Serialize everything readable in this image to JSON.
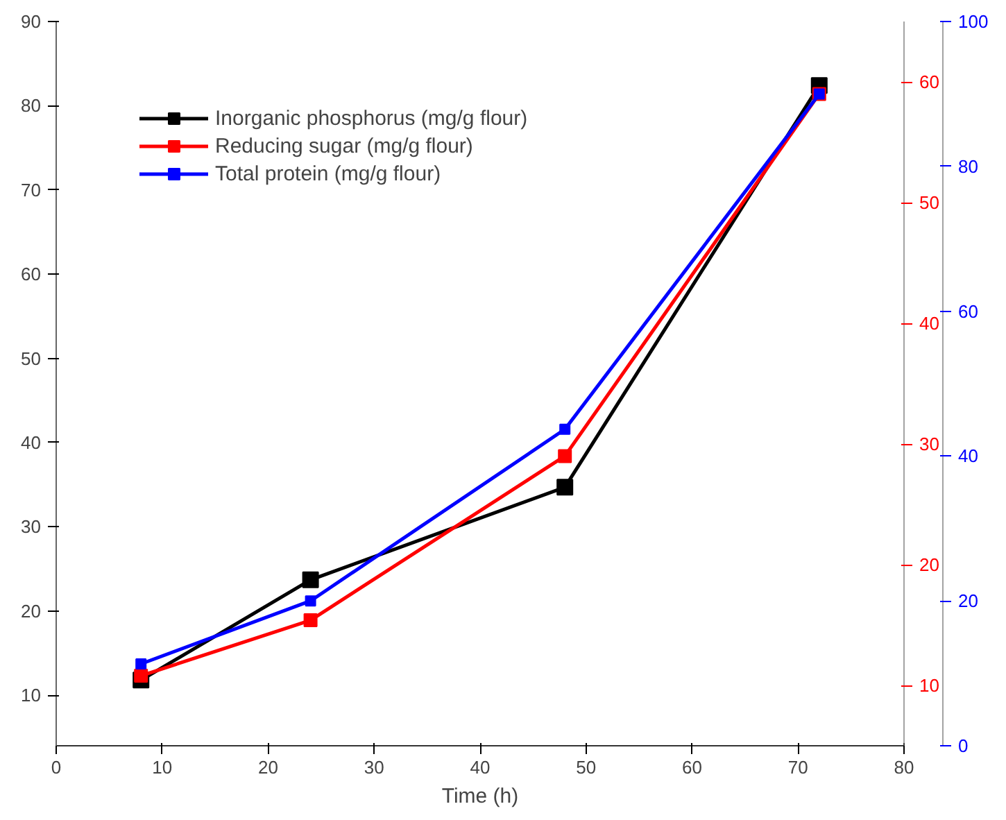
{
  "chart_data": {
    "type": "line",
    "xlabel": "Time (h)",
    "xlim": [
      0,
      80
    ],
    "xticks": [
      0,
      10,
      20,
      30,
      40,
      50,
      60,
      70,
      80
    ],
    "ylim": [
      4,
      90
    ],
    "yticks": [
      10,
      20,
      30,
      40,
      50,
      60,
      70,
      80,
      90
    ],
    "y2lim": [
      5,
      65
    ],
    "y2ticks": [
      10,
      20,
      30,
      40,
      50,
      60
    ],
    "y3lim": [
      0,
      100
    ],
    "y3ticks": [
      0,
      20,
      40,
      60,
      80,
      100
    ],
    "grid": false,
    "legend": "top left",
    "marker": "square",
    "line_style": "solid",
    "series": [
      {
        "name": "Inorganic phosphorus (mg/g flour)",
        "color": "#000000",
        "x": [
          8,
          24,
          48,
          72
        ],
        "values": [
          11.8,
          23.7,
          34.7,
          82.4
        ]
      },
      {
        "name": "Reducing sugar (mg/g flour)",
        "color": "#ff0000",
        "axis": "y2",
        "x": [
          8,
          24,
          48,
          72
        ],
        "values": [
          10.8,
          15.4,
          29,
          59
        ]
      },
      {
        "name": "Total protein (mg/g flour)",
        "color": "#0000ff",
        "axis": "y3",
        "x": [
          8,
          24,
          48,
          72
        ],
        "values": [
          11.3,
          20,
          43.7,
          90
        ]
      }
    ]
  }
}
